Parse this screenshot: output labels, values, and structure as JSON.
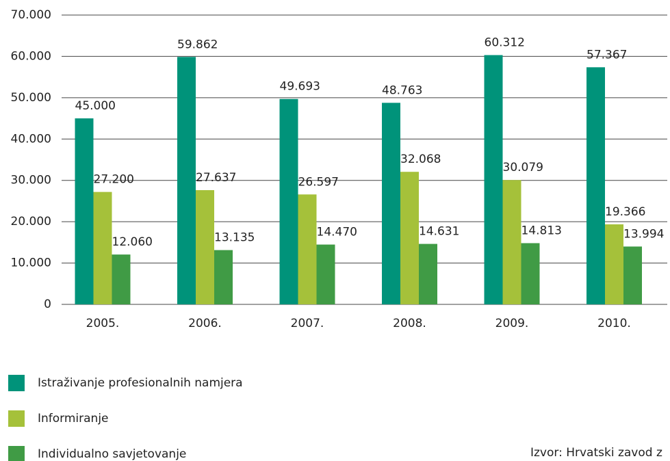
{
  "chart_data": {
    "type": "bar",
    "categories": [
      "2005.",
      "2006.",
      "2007.",
      "2008.",
      "2009.",
      "2010."
    ],
    "series": [
      {
        "name": "Istraživanje profesionalnih namjera",
        "color": "#00937a",
        "values": [
          45000,
          59862,
          49693,
          48763,
          60312,
          57367
        ],
        "value_labels": [
          "45.000",
          "59.862",
          "49.693",
          "48.763",
          "60.312",
          "57.367"
        ]
      },
      {
        "name": "Informiranje",
        "color": "#a5c13a",
        "values": [
          27200,
          27637,
          26597,
          32068,
          30079,
          19366
        ],
        "value_labels": [
          "27.200",
          "27.637",
          "26.597",
          "32.068",
          "30.079",
          "19.366"
        ]
      },
      {
        "name": "Individualno savjetovanje",
        "color": "#409b45",
        "values": [
          12060,
          13135,
          14470,
          14631,
          14813,
          13994
        ],
        "value_labels": [
          "12.060",
          "13.135",
          "14.470",
          "14.631",
          "14.813",
          "13.994"
        ]
      }
    ],
    "ylim": [
      0,
      70000
    ],
    "yticks": [
      0,
      {
        "value": 10000,
        "label": "10.000"
      },
      {
        "value": 20000,
        "label": "20.000"
      },
      {
        "value": 30000,
        "label": "30.000"
      },
      {
        "value": 40000,
        "label": "40.000"
      },
      {
        "value": 50000,
        "label": "50.000"
      },
      {
        "value": 60000,
        "label": "60.000"
      },
      {
        "value": 70000,
        "label": "70.000"
      }
    ],
    "grid": true,
    "source": "Izvor: Hrvatski zavod z"
  }
}
